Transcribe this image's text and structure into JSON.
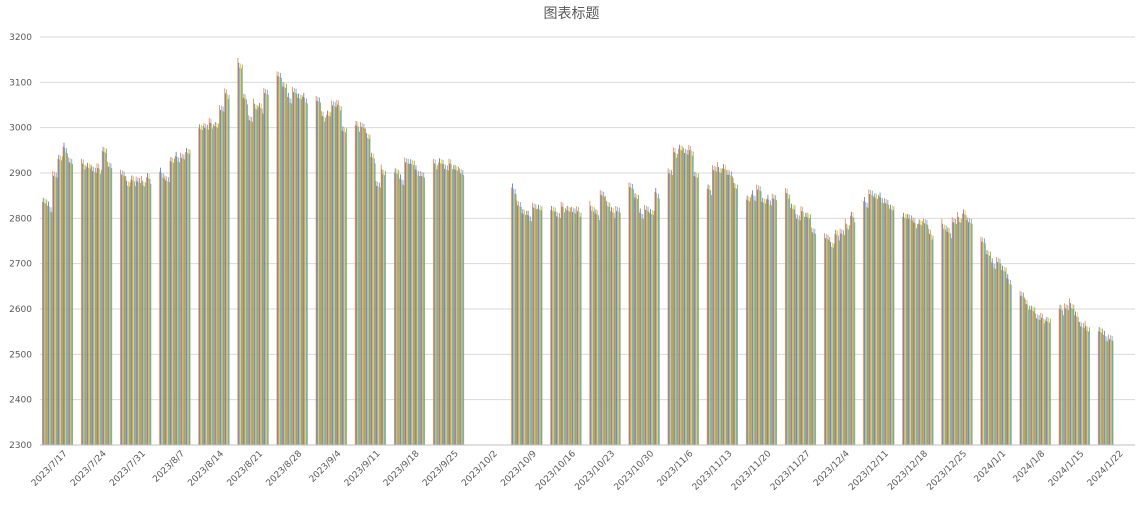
{
  "chart_data": {
    "type": "bar",
    "title": "图表标题",
    "xlabel": "",
    "ylabel": "",
    "ylim": [
      2300,
      3200
    ],
    "yticks": [
      2300,
      2400,
      2500,
      2600,
      2700,
      2800,
      2900,
      3000,
      3100,
      3200
    ],
    "grid": true,
    "x_tick_labels": [
      "2023/7/17",
      "2023/7/24",
      "2023/7/31",
      "2023/8/7",
      "2023/8/14",
      "2023/8/21",
      "2023/8/28",
      "2023/9/4",
      "2023/9/11",
      "2023/9/18",
      "2023/9/25",
      "2023/10/2",
      "2023/10/9",
      "2023/10/16",
      "2023/10/23",
      "2023/10/30",
      "2023/11/6",
      "2023/11/13",
      "2023/11/20",
      "2023/11/27",
      "2023/12/4",
      "2023/12/11",
      "2023/12/18",
      "2023/12/25",
      "2024/1/1",
      "2024/1/8",
      "2024/1/15",
      "2024/1/22"
    ],
    "series_colors": [
      "#ED7D31",
      "#4472C4",
      "#A5A5A5",
      "#FFC000",
      "#5B9BD5",
      "#70AD47"
    ],
    "weeks": [
      {
        "week": "2023/7/17",
        "days": [
          2845,
          2830,
          2900,
          2940,
          2960,
          2930
        ]
      },
      {
        "week": "2023/7/24",
        "days": [
          2925,
          2920,
          2915,
          2915,
          2955,
          2925
        ]
      },
      {
        "week": "2023/7/31",
        "days": [
          2905,
          2885,
          2890,
          2890,
          2885,
          2895
        ]
      },
      {
        "week": "2023/8/7",
        "days": [
          2905,
          2890,
          2935,
          2940,
          2940,
          2955
        ]
      },
      {
        "week": "2023/8/14",
        "days": [
          3005,
          3010,
          3015,
          3010,
          3050,
          3080
        ]
      },
      {
        "week": "2023/8/21",
        "days": [
          3145,
          3070,
          3025,
          3055,
          3050,
          3085
        ]
      },
      {
        "week": "2023/8/28",
        "days": [
          3120,
          3100,
          3070,
          3085,
          3075,
          3070
        ]
      },
      {
        "week": "2023/9/4",
        "days": [
          3070,
          3030,
          3035,
          3060,
          3055,
          3000
        ]
      },
      {
        "week": "2023/9/11",
        "days": [
          3010,
          3010,
          2990,
          2940,
          2880,
          2910
        ]
      },
      {
        "week": "2023/9/18",
        "days": [
          2910,
          2890,
          2930,
          2930,
          2910,
          2900
        ]
      },
      {
        "week": "2023/9/25",
        "days": [
          2925,
          2930,
          2920,
          2925,
          2915,
          2910
        ]
      },
      {
        "week": "2023/10/2",
        "days": []
      },
      {
        "week": "2023/10/9",
        "days": [
          2870,
          2835,
          2820,
          2810,
          2830,
          2830
        ]
      },
      {
        "week": "2023/10/16",
        "days": [
          2825,
          2815,
          2830,
          2825,
          2825,
          2820
        ]
      },
      {
        "week": "2023/10/23",
        "days": [
          2830,
          2815,
          2860,
          2840,
          2820,
          2825
        ]
      },
      {
        "week": "2023/10/30",
        "days": [
          2875,
          2855,
          2815,
          2825,
          2820,
          2860
        ]
      },
      {
        "week": "2023/11/6",
        "days": [
          2910,
          2950,
          2960,
          2955,
          2955,
          2900
        ]
      },
      {
        "week": "2023/11/13",
        "days": [
          2870,
          2915,
          2915,
          2915,
          2905,
          2880
        ]
      },
      {
        "week": "2023/11/20",
        "days": [
          2850,
          2855,
          2870,
          2845,
          2845,
          2850
        ]
      },
      {
        "week": "2023/11/27",
        "days": [
          2860,
          2830,
          2810,
          2820,
          2810,
          2780
        ]
      },
      {
        "week": "2023/12/4",
        "days": [
          2765,
          2750,
          2770,
          2775,
          2790,
          2810
        ]
      },
      {
        "week": "2023/12/11",
        "days": [
          2840,
          2860,
          2855,
          2850,
          2840,
          2830
        ]
      },
      {
        "week": "2023/12/18",
        "days": [
          2810,
          2810,
          2795,
          2795,
          2800,
          2770
        ]
      },
      {
        "week": "2023/12/25",
        "days": [
          2790,
          2775,
          2800,
          2805,
          2815,
          2800
        ]
      },
      {
        "week": "2024/1/1",
        "days": [
          2755,
          2730,
          2705,
          2710,
          2695,
          2670
        ]
      },
      {
        "week": "2024/1/8",
        "days": [
          2640,
          2615,
          2605,
          2590,
          2585,
          2580
        ]
      },
      {
        "week": "2024/1/15",
        "days": [
          2605,
          2610,
          2615,
          2590,
          2570,
          2565
        ]
      },
      {
        "week": "2024/1/22",
        "days": [
          2560,
          2545,
          2540
        ]
      }
    ]
  }
}
